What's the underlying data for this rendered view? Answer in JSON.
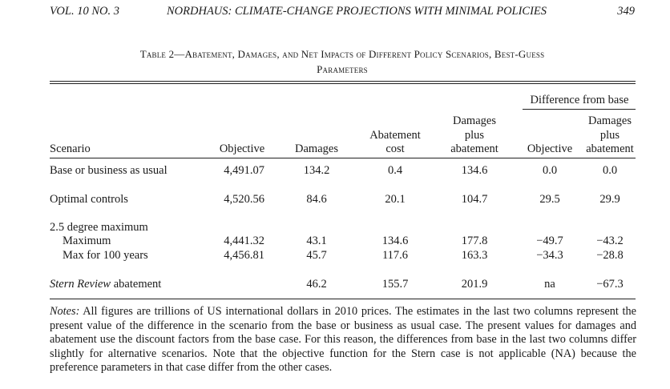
{
  "running_head": {
    "volume": "VOL. 10 NO. 3",
    "title": "NORDHAUS: CLIMATE-CHANGE PROJECTIONS WITH MINIMAL POLICIES",
    "page": "349"
  },
  "table": {
    "caption_line1": "Table 2—Abatement, Damages, and Net Impacts of Different Policy Scenarios, Best-Guess",
    "caption_line2": "Parameters",
    "group_header": "Difference from base",
    "headers": {
      "scenario": "Scenario",
      "objective": "Objective",
      "damages": "Damages",
      "abatement_cost": [
        "Abatement",
        "cost"
      ],
      "damages_plus_abatement": [
        "Damages",
        "plus",
        "abatement"
      ],
      "diff_objective": "Objective",
      "diff_damages_plus_abatement": [
        "Damages",
        "plus",
        "abatement"
      ]
    },
    "rows": [
      {
        "scenario": "Base or business as usual",
        "objective": "4,491.07",
        "damages": "134.2",
        "abatement_cost": "0.4",
        "damages_plus_abatement": "134.6",
        "diff_objective": "0.0",
        "diff_damages_plus_abatement": "0.0"
      },
      {
        "scenario": "Optimal controls",
        "objective": "4,520.56",
        "damages": "84.6",
        "abatement_cost": "20.1",
        "damages_plus_abatement": "104.7",
        "diff_objective": "29.5",
        "diff_damages_plus_abatement": "29.9"
      },
      {
        "scenario": "2.5 degree maximum"
      },
      {
        "scenario": "Maximum",
        "objective": "4,441.32",
        "damages": "43.1",
        "abatement_cost": "134.6",
        "damages_plus_abatement": "177.8",
        "diff_objective": "−49.7",
        "diff_damages_plus_abatement": "−43.2"
      },
      {
        "scenario": "Max for 100 years",
        "objective": "4,456.81",
        "damages": "45.7",
        "abatement_cost": "117.6",
        "damages_plus_abatement": "163.3",
        "diff_objective": "−34.3",
        "diff_damages_plus_abatement": "−28.8"
      },
      {
        "scenario_italic": "Stern Review",
        "scenario": " abatement",
        "objective": "",
        "damages": "46.2",
        "abatement_cost": "155.7",
        "damages_plus_abatement": "201.9",
        "diff_objective": "na",
        "diff_damages_plus_abatement": "−67.3"
      }
    ]
  },
  "notes": {
    "label": "Notes:",
    "text": " All figures are trillions of US international dollars in 2010 prices. The estimates in the last two columns represent the present value of the difference in the scenario from the base or business as usual case. The present values for damages and abatement use the discount factors from the base case. For this reason, the differences from base in the last two columns differ slightly for alternative scenarios. Note that the objective function for the Stern case is not applicable (NA) because the preference parameters in that case differ from the other cases."
  }
}
